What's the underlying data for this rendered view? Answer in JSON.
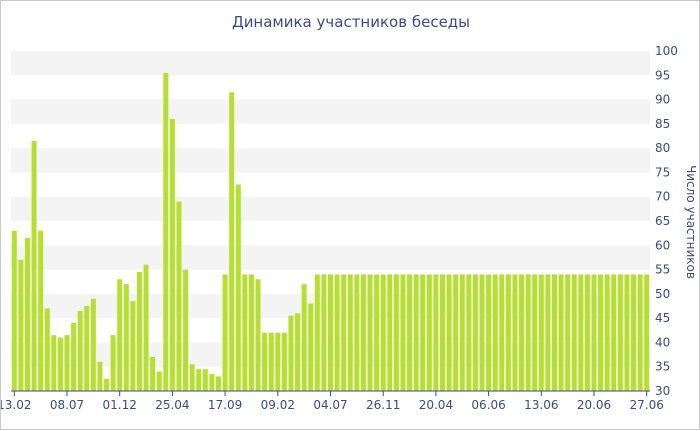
{
  "chart_data": {
    "type": "bar",
    "title": "Динамика участников беседы",
    "xlabel": "",
    "ylabel": "Число участников",
    "ylim": [
      30,
      100
    ],
    "yticks": [
      30,
      35,
      40,
      45,
      50,
      55,
      60,
      65,
      70,
      75,
      80,
      85,
      90,
      95,
      100
    ],
    "x_tick_labels": [
      "13.02",
      "08.07",
      "01.12",
      "25.04",
      "17.09",
      "09.02",
      "04.07",
      "26.11",
      "20.04",
      "06.06",
      "13.06",
      "20.06",
      "27.06"
    ],
    "x_tick_bar_index": [
      0,
      8,
      16,
      24,
      32,
      40,
      48,
      56,
      64,
      72,
      80,
      88,
      96
    ],
    "bar_color": "#b5e02e",
    "grid": "horizontal alternating bands",
    "values": [
      63,
      57,
      61.5,
      81.5,
      63,
      47,
      41.5,
      41,
      41.5,
      44,
      46.5,
      47.5,
      49,
      36,
      32.5,
      41.5,
      53,
      52,
      48.5,
      54.5,
      56,
      37,
      34,
      95.5,
      86,
      69,
      55,
      35.5,
      34.5,
      34.5,
      33.5,
      33,
      54,
      91.5,
      72.5,
      54,
      54,
      53,
      42,
      42,
      42,
      42,
      45.5,
      46,
      52,
      48,
      54,
      54,
      54,
      54,
      54,
      54,
      54,
      54,
      54,
      54,
      54,
      54,
      54,
      54,
      54,
      54,
      54,
      54,
      54,
      54,
      54,
      54,
      54,
      54,
      54,
      54,
      54,
      54,
      54,
      54,
      54,
      54,
      54,
      54,
      54,
      54,
      54,
      54,
      54,
      54,
      54,
      54,
      54,
      54,
      54,
      54,
      54,
      54,
      54,
      54,
      54
    ]
  }
}
